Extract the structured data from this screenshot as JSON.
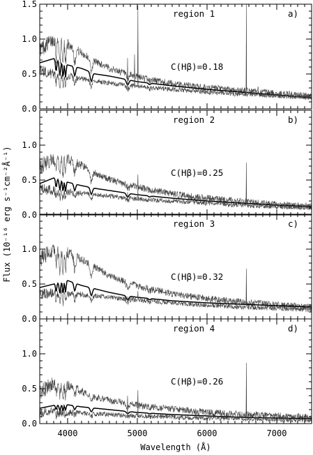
{
  "chart_data": {
    "type": "line",
    "xlabel": "Wavelength (Å)",
    "ylabel": "Flux (10⁻¹⁶ erg s⁻¹cm⁻²Å⁻¹)",
    "xlim": [
      3600,
      7500
    ],
    "ylim": [
      0,
      1.5
    ],
    "x_ticks": [
      "4000",
      "5000",
      "6000",
      "7000"
    ],
    "y_ticks": [
      "0.0",
      "0.5",
      "1.0",
      "1.5"
    ],
    "grid": false,
    "panels": [
      {
        "region": "region 1",
        "panel_label": "a)",
        "extinction": "C(Hβ)=0.18",
        "series": [
          {
            "role": "dereddened",
            "x": [
              3600,
              3800,
              4000,
              4200,
              4400,
              4600,
              4800,
              5000,
              5500,
              6000,
              6500,
              7000,
              7500
            ],
            "y": [
              0.85,
              1.0,
              0.93,
              0.8,
              0.68,
              0.58,
              0.52,
              0.46,
              0.36,
              0.3,
              0.26,
              0.22,
              0.18
            ]
          },
          {
            "role": "model",
            "x": [
              3600,
              3800,
              4000,
              4200,
              4400,
              4600,
              4800,
              5000,
              5500,
              6000,
              6500,
              7000,
              7500
            ],
            "y": [
              0.66,
              0.72,
              0.63,
              0.58,
              0.5,
              0.47,
              0.43,
              0.39,
              0.33,
              0.28,
              0.24,
              0.2,
              0.16
            ]
          },
          {
            "role": "observed",
            "x": [
              3600,
              3800,
              4000,
              4200,
              4400,
              4600,
              4800,
              5000,
              5500,
              6000,
              6500,
              7000,
              7500
            ],
            "y": [
              0.55,
              0.5,
              0.47,
              0.43,
              0.4,
              0.37,
              0.34,
              0.32,
              0.28,
              0.24,
              0.21,
              0.19,
              0.16
            ]
          }
        ],
        "emission_lines": [
          {
            "x": 4861,
            "peak": 0.73
          },
          {
            "x": 4959,
            "peak": 0.78
          },
          {
            "x": 5007,
            "peak": 1.48
          },
          {
            "x": 6563,
            "peak": 1.5
          },
          {
            "x": 6731,
            "peak": 0.32
          }
        ]
      },
      {
        "region": "region 2",
        "panel_label": "b)",
        "extinction": "C(Hβ)=0.25",
        "series": [
          {
            "role": "dereddened",
            "x": [
              3600,
              3800,
              4000,
              4200,
              4400,
              4600,
              4800,
              5000,
              5500,
              6000,
              6500,
              7000,
              7500
            ],
            "y": [
              0.7,
              0.8,
              0.8,
              0.71,
              0.6,
              0.51,
              0.45,
              0.4,
              0.3,
              0.24,
              0.19,
              0.15,
              0.12
            ]
          },
          {
            "role": "model",
            "x": [
              3600,
              3800,
              4000,
              4200,
              4400,
              4600,
              4800,
              5000,
              5500,
              6000,
              6500,
              7000,
              7500
            ],
            "y": [
              0.45,
              0.53,
              0.47,
              0.42,
              0.38,
              0.35,
              0.32,
              0.29,
              0.24,
              0.2,
              0.17,
              0.14,
              0.12
            ]
          },
          {
            "role": "observed",
            "x": [
              3600,
              3800,
              4000,
              4200,
              4400,
              4600,
              4800,
              5000,
              5500,
              6000,
              6500,
              7000,
              7500
            ],
            "y": [
              0.38,
              0.35,
              0.33,
              0.31,
              0.29,
              0.27,
              0.25,
              0.23,
              0.2,
              0.17,
              0.14,
              0.12,
              0.1
            ]
          }
        ],
        "emission_lines": [
          {
            "x": 4861,
            "peak": 0.45
          },
          {
            "x": 5007,
            "peak": 0.58
          },
          {
            "x": 6563,
            "peak": 0.75
          }
        ]
      },
      {
        "region": "region 3",
        "panel_label": "c)",
        "extinction": "C(Hβ)=0.32",
        "series": [
          {
            "role": "dereddened",
            "x": [
              3600,
              3800,
              4000,
              4200,
              4400,
              4600,
              4800,
              5000,
              5500,
              6000,
              6500,
              7000,
              7500
            ],
            "y": [
              0.85,
              1.0,
              0.95,
              0.85,
              0.74,
              0.62,
              0.54,
              0.47,
              0.36,
              0.29,
              0.24,
              0.2,
              0.17
            ]
          },
          {
            "role": "model",
            "x": [
              3600,
              3800,
              4000,
              4200,
              4400,
              4600,
              4800,
              5000,
              5500,
              6000,
              6500,
              7000,
              7500
            ],
            "y": [
              0.45,
              0.5,
              0.55,
              0.48,
              0.43,
              0.38,
              0.34,
              0.31,
              0.26,
              0.23,
              0.21,
              0.19,
              0.17
            ]
          },
          {
            "role": "observed",
            "x": [
              3600,
              3800,
              4000,
              4200,
              4400,
              4600,
              4800,
              5000,
              5500,
              6000,
              6500,
              7000,
              7500
            ],
            "y": [
              0.35,
              0.37,
              0.36,
              0.35,
              0.33,
              0.31,
              0.29,
              0.27,
              0.23,
              0.2,
              0.17,
              0.15,
              0.13
            ]
          }
        ],
        "emission_lines": [
          {
            "x": 4861,
            "peak": 0.42
          },
          {
            "x": 5007,
            "peak": 0.5
          },
          {
            "x": 6563,
            "peak": 0.72
          }
        ]
      },
      {
        "region": "region 4",
        "panel_label": "d)",
        "extinction": "C(Hβ)=0.26",
        "series": [
          {
            "role": "dereddened",
            "x": [
              3600,
              3800,
              4000,
              4200,
              4400,
              4600,
              4800,
              5000,
              5500,
              6000,
              6500,
              7000,
              7500
            ],
            "y": [
              0.45,
              0.58,
              0.55,
              0.47,
              0.38,
              0.33,
              0.3,
              0.26,
              0.21,
              0.16,
              0.13,
              0.11,
              0.09
            ]
          },
          {
            "role": "model",
            "x": [
              3600,
              3800,
              4000,
              4200,
              4400,
              4600,
              4800,
              5000,
              5500,
              6000,
              6500,
              7000,
              7500
            ],
            "y": [
              0.22,
              0.26,
              0.27,
              0.24,
              0.22,
              0.2,
              0.18,
              0.16,
              0.13,
              0.11,
              0.09,
              0.08,
              0.07
            ]
          },
          {
            "role": "observed",
            "x": [
              3600,
              3800,
              4000,
              4200,
              4400,
              4600,
              4800,
              5000,
              5500,
              6000,
              6500,
              7000,
              7500
            ],
            "y": [
              0.15,
              0.17,
              0.16,
              0.15,
              0.14,
              0.13,
              0.12,
              0.11,
              0.09,
              0.08,
              0.07,
              0.06,
              0.05
            ]
          }
        ],
        "emission_lines": [
          {
            "x": 4861,
            "peak": 0.4
          },
          {
            "x": 5007,
            "peak": 0.48
          },
          {
            "x": 6563,
            "peak": 0.87
          }
        ]
      }
    ]
  }
}
